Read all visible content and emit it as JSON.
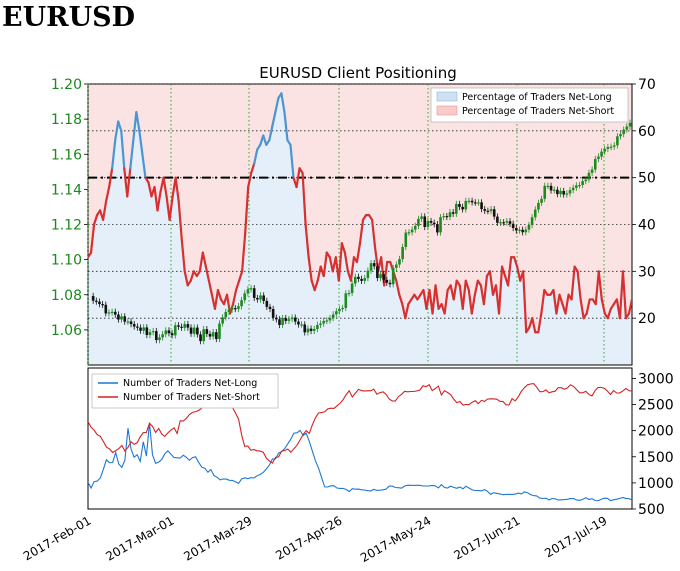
{
  "header": {
    "symbol": "EURUSD"
  },
  "chart_data": [
    {
      "type": "line",
      "title": "EURUSD Client Positioning",
      "x_ticks": [
        "2017-Feb-01",
        "2017-Mar-01",
        "2017-Mar-29",
        "2017-Apr-26",
        "2017-May-24",
        "2017-Jun-21",
        "2017-Jul-19"
      ],
      "price_axis": {
        "ylim": [
          1.04,
          1.2
        ],
        "ticks": [
          "1.20",
          "1.18",
          "1.16",
          "1.14",
          "1.12",
          "1.10",
          "1.08",
          "1.06"
        ]
      },
      "pct_axis": {
        "ylim": [
          10,
          70
        ],
        "ticks": [
          "70",
          "60",
          "50",
          "40",
          "30",
          "20"
        ]
      },
      "reference_line": 50,
      "legend": {
        "position": "top-right",
        "entries": [
          "Percentage of Traders Net-Long",
          "Percentage of Traders Net-Short"
        ]
      },
      "net_short_pct_visible_series": [
        33,
        34,
        40,
        42,
        43,
        41,
        45,
        48,
        52,
        58,
        62,
        60,
        52,
        46,
        52,
        58,
        64,
        60,
        55,
        50,
        49,
        46,
        48,
        43,
        47,
        50,
        46,
        41,
        46,
        50,
        45,
        37,
        30,
        27,
        28,
        30,
        29,
        30,
        34,
        31,
        28,
        25,
        22,
        26,
        24,
        23,
        25,
        21,
        23,
        26,
        28,
        30,
        38,
        48,
        51,
        53,
        56,
        57,
        59,
        57,
        58,
        61,
        64,
        67,
        68,
        64,
        58,
        57,
        50,
        48,
        52,
        51,
        40,
        33,
        28,
        26,
        28,
        31,
        29,
        34,
        33,
        30,
        33,
        28,
        36,
        34,
        30,
        28,
        33,
        32,
        36,
        41,
        42,
        42,
        41,
        35,
        30,
        33,
        27,
        32,
        32,
        30,
        28,
        25,
        23,
        20,
        23,
        24,
        25,
        24,
        25,
        26,
        22,
        26,
        21,
        27,
        22,
        23,
        21,
        26,
        27,
        24,
        28,
        27,
        22,
        28,
        26,
        21,
        25,
        28,
        27,
        23,
        29,
        30,
        25,
        27,
        21,
        31,
        29,
        27,
        33,
        33,
        31,
        28,
        30,
        17,
        18,
        20,
        17,
        17,
        21,
        26,
        25,
        25,
        26,
        21,
        25,
        23,
        21,
        25,
        24,
        31,
        30,
        24,
        20,
        21,
        24,
        24,
        23,
        30,
        24,
        21,
        20,
        22,
        23,
        24,
        20,
        30,
        20,
        21,
        24
      ],
      "price_visible_series": [
        1.0793,
        1.0766,
        1.0761,
        1.0747,
        1.0743,
        1.0694,
        1.0699,
        1.0703,
        1.0687,
        1.0659,
        1.0677,
        1.0647,
        1.0648,
        1.0633,
        1.0619,
        1.0613,
        1.0595,
        1.0614,
        1.0571,
        1.0587,
        1.0593,
        1.0542,
        1.0557,
        1.0575,
        1.0597,
        1.0581,
        1.0569,
        1.0626,
        1.0618,
        1.0612,
        1.0633,
        1.0613,
        1.0578,
        1.0613,
        1.0574,
        1.0536,
        1.0604,
        1.0577,
        1.0562,
        1.0587,
        1.0548,
        1.0636,
        1.0671,
        1.0702,
        1.0715,
        1.0724,
        1.0719,
        1.0735,
        1.0769,
        1.0808,
        1.0831,
        1.0837,
        1.0782,
        1.0773,
        1.0796,
        1.0765,
        1.0731,
        1.0719,
        1.0669,
        1.066,
        1.0628,
        1.0667,
        1.0651,
        1.0661,
        1.067,
        1.0647,
        1.0631,
        1.0631,
        1.0586,
        1.0607,
        1.0594,
        1.0605,
        1.0628,
        1.0636,
        1.0651,
        1.0654,
        1.0667,
        1.0688,
        1.0706,
        1.0719,
        1.0725,
        1.0808,
        1.081,
        1.0864,
        1.0902,
        1.089,
        1.0879,
        1.0895,
        1.0937,
        1.098,
        1.0962,
        1.0895,
        1.0917,
        1.0885,
        1.0868,
        1.086,
        1.0953,
        1.0972,
        1.1003,
        1.1072,
        1.1154,
        1.1156,
        1.1171,
        1.1192,
        1.1232,
        1.1246,
        1.1186,
        1.122,
        1.121,
        1.1202,
        1.1155,
        1.1242,
        1.1248,
        1.1243,
        1.127,
        1.1261,
        1.1317,
        1.13,
        1.1286,
        1.1334,
        1.1335,
        1.1326,
        1.1325,
        1.1326,
        1.1288,
        1.1278,
        1.1276,
        1.1287,
        1.1245,
        1.121,
        1.1213,
        1.1211,
        1.1219,
        1.1204,
        1.118,
        1.1166,
        1.117,
        1.1156,
        1.1171,
        1.1197,
        1.1241,
        1.1285,
        1.1323,
        1.1346,
        1.142,
        1.142,
        1.1394,
        1.1398,
        1.1373,
        1.1391,
        1.1371,
        1.1377,
        1.1396,
        1.1409,
        1.1423,
        1.1425,
        1.1447,
        1.1456,
        1.1494,
        1.1513,
        1.1573,
        1.1587,
        1.1615,
        1.163,
        1.1641,
        1.1643,
        1.1651,
        1.1702,
        1.1715,
        1.174,
        1.1758,
        1.1779
      ]
    },
    {
      "type": "line",
      "ylim": [
        500,
        3200
      ],
      "y_ticks": [
        "3000",
        "2500",
        "2000",
        "1500",
        "1000",
        "500"
      ],
      "legend": {
        "position": "top-left"
      },
      "series": [
        {
          "name": "Number of Traders Net-Long",
          "color": "#1f77d4",
          "values": [
            1012,
            903,
            1023,
            1034,
            1093,
            1262,
            1442,
            1386,
            1390,
            1580,
            1362,
            1297,
            1436,
            2048,
            1650,
            1492,
            1540,
            1411,
            1788,
            1513,
            2152,
            1535,
            1375,
            1398,
            1448,
            1558,
            1612,
            1549,
            1484,
            1480,
            1475,
            1531,
            1489,
            1433,
            1485,
            1500,
            1396,
            1303,
            1281,
            1205,
            1254,
            1142,
            1107,
            1057,
            1076,
            1073,
            1050,
            1047,
            1018,
            993,
            1079,
            1097,
            1080,
            1099,
            1095,
            1135,
            1160,
            1199,
            1266,
            1338,
            1459,
            1457,
            1570,
            1599,
            1658,
            1749,
            1837,
            1953,
            1959,
            2005,
            1906,
            1952,
            1794,
            1607,
            1423,
            1286,
            1101,
            923,
            922,
            945,
            947,
            902,
            895,
            894,
            873,
            836,
            888,
            880,
            882,
            868,
            864,
            850,
            846,
            875,
            857,
            860,
            867,
            881,
            939,
            940,
            912,
            907,
            898,
            941,
            955,
            954,
            952,
            953,
            953,
            941,
            941,
            941,
            951,
            942,
            905,
            968,
            912,
            902,
            939,
            913,
            896,
            921,
            887,
            936,
            900,
            865,
            855,
            856,
            847,
            871,
            839,
            780,
            812,
            800,
            790,
            774,
            779,
            781,
            779,
            786,
            804,
            789,
            828,
            812,
            776,
            756,
            751,
            708,
            702,
            707,
            674,
            702,
            695,
            671,
            676,
            680,
            685,
            699,
            702,
            670,
            666,
            685,
            715,
            682,
            697,
            663,
            658,
            688,
            706,
            704,
            661,
            676,
            687,
            702,
            720,
            703,
            698,
            674
          ]
        },
        {
          "name": "Number of Traders Net-Short",
          "color": "#d62222",
          "values": [
            2169,
            2064,
            2011,
            1922,
            1893,
            1793,
            1686,
            1650,
            1582,
            1617,
            1654,
            1716,
            1611,
            1682,
            1788,
            1737,
            1767,
            1883,
            1962,
            1966,
            2141,
            2084,
            1965,
            2042,
            1934,
            1891,
            1957,
            2011,
            2055,
            1946,
            2188,
            2183,
            2237,
            2309,
            2349,
            2365,
            2386,
            2431,
            2550,
            2700,
            2699,
            2799,
            2873,
            2763,
            2696,
            2677,
            2609,
            2443,
            2339,
            2220,
            1914,
            1699,
            1706,
            1626,
            1638,
            1614,
            1608,
            1588,
            1477,
            1419,
            1379,
            1488,
            1497,
            1607,
            1621,
            1648,
            1585,
            1654,
            1721,
            1824,
            1928,
            2000,
            1947,
            2115,
            2245,
            2338,
            2346,
            2362,
            2416,
            2431,
            2426,
            2475,
            2522,
            2593,
            2691,
            2763,
            2645,
            2719,
            2790,
            2768,
            2758,
            2766,
            2764,
            2796,
            2696,
            2729,
            2742,
            2692,
            2607,
            2569,
            2566,
            2652,
            2694,
            2754,
            2744,
            2750,
            2750,
            2761,
            2779,
            2859,
            2841,
            2880,
            2767,
            2807,
            2854,
            2684,
            2765,
            2730,
            2689,
            2604,
            2538,
            2558,
            2489,
            2502,
            2499,
            2545,
            2574,
            2517,
            2580,
            2560,
            2604,
            2611,
            2609,
            2603,
            2562,
            2560,
            2496,
            2493,
            2614,
            2570,
            2651,
            2755,
            2822,
            2878,
            2894,
            2901,
            2833,
            2748,
            2746,
            2783,
            2726,
            2745,
            2756,
            2823,
            2823,
            2792,
            2818,
            2878,
            2847,
            2784,
            2723,
            2727,
            2753,
            2690,
            2666,
            2767,
            2828,
            2826,
            2811,
            2759,
            2692,
            2769,
            2722,
            2724,
            2758,
            2810,
            2765,
            2760
          ]
        }
      ]
    }
  ]
}
